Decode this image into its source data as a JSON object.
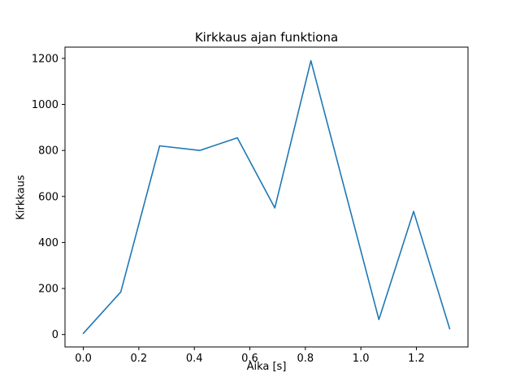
{
  "chart_data": {
    "type": "line",
    "title": "Kirkkaus ajan funktiona",
    "xlabel": "Aika [s]",
    "ylabel": "Kirkkaus",
    "x": [
      0.0,
      0.135,
      0.275,
      0.42,
      0.555,
      0.69,
      0.82,
      1.065,
      1.19,
      1.32
    ],
    "y": [
      5,
      185,
      820,
      800,
      855,
      550,
      1190,
      65,
      535,
      25
    ],
    "xlim": [
      -0.066,
      1.386
    ],
    "ylim": [
      -54,
      1249
    ],
    "xticks": {
      "values": [
        0.0,
        0.2,
        0.4,
        0.6,
        0.8,
        1.0,
        1.2
      ],
      "labels": [
        "0.0",
        "0.2",
        "0.4",
        "0.6",
        "0.8",
        "1.0",
        "1.2"
      ]
    },
    "yticks": {
      "values": [
        0,
        200,
        400,
        600,
        800,
        1000,
        1200
      ],
      "labels": [
        "0",
        "200",
        "400",
        "600",
        "800",
        "1000",
        "1200"
      ]
    },
    "line_color": "#1f77b4",
    "axis_color": "#000000",
    "grid": false
  }
}
